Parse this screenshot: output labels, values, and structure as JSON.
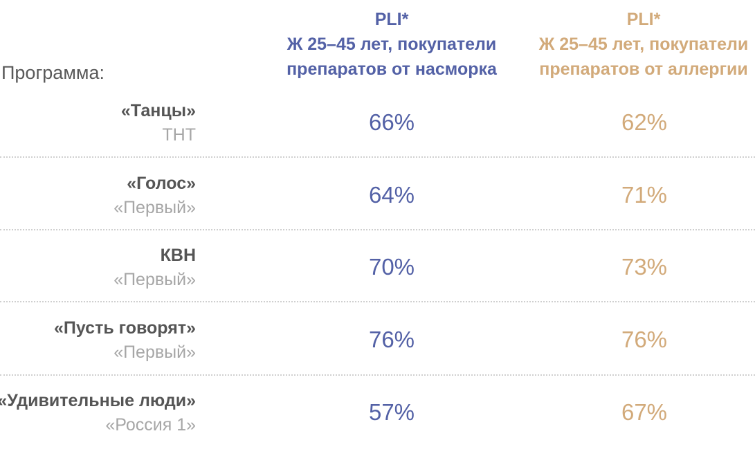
{
  "table": {
    "program_label": "Программа:",
    "columns": [
      {
        "lines": [
          "PLI*",
          "Ж 25–45 лет, покупатели",
          "препаратов от насморка"
        ],
        "color": "#5361a6"
      },
      {
        "lines": [
          "PLI*",
          "Ж 25–45 лет, покупатели",
          "препаратов от аллергии"
        ],
        "color": "#d2aa7a"
      }
    ],
    "rows": [
      {
        "name": "«Танцы»",
        "channel": "ТНТ",
        "a": "66%",
        "b": "62%"
      },
      {
        "name": "«Голос»",
        "channel": "«Первый»",
        "a": "64%",
        "b": "71%"
      },
      {
        "name": "КВН",
        "channel": "«Первый»",
        "a": "70%",
        "b": "73%"
      },
      {
        "name": "«Пусть говорят»",
        "channel": "«Первый»",
        "a": "76%",
        "b": "76%"
      },
      {
        "name": "«Удивительные люди»",
        "channel": "«Россия 1»",
        "a": "57%",
        "b": "67%"
      }
    ]
  },
  "chart_data": {
    "type": "table",
    "columns": [
      "Программа:",
      "PLI* Ж 25–45 лет, покупатели препаратов от насморка",
      "PLI* Ж 25–45 лет, покупатели препаратов от аллергии"
    ],
    "rows": [
      [
        "«Танцы» ТНТ",
        66,
        62
      ],
      [
        "«Голос» «Первый»",
        64,
        71
      ],
      [
        "КВН «Первый»",
        70,
        73
      ],
      [
        "«Пусть говорят» «Первый»",
        76,
        76
      ],
      [
        "«Удивительные люди» «Россия 1»",
        57,
        67
      ]
    ]
  }
}
